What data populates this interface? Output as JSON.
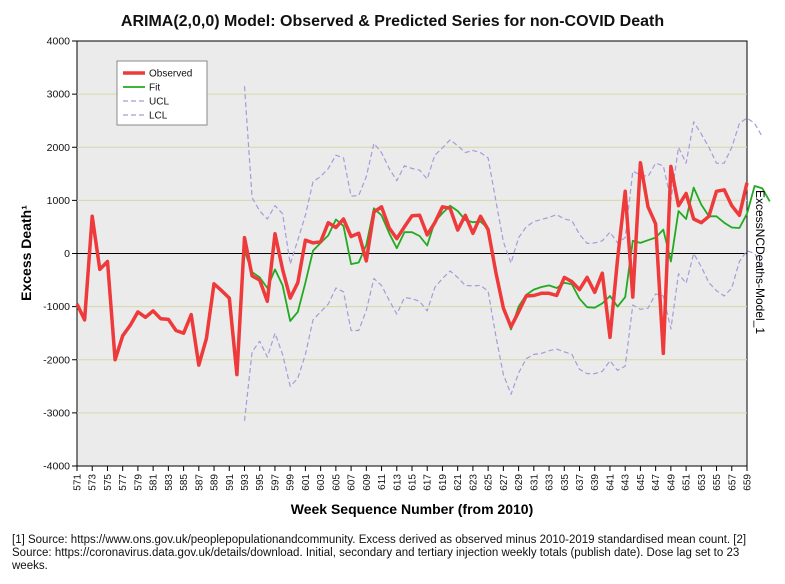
{
  "chart_data": {
    "type": "line",
    "title": "ARIMA(2,0,0) Model: Observed & Predicted Series for non-COVID Death",
    "xlabel": "Week Sequence Number (from 2010)",
    "ylabel": "Excess Death¹",
    "right_label": "ExcessNCDeaths-Model_1",
    "xlim": [
      571,
      659
    ],
    "ylim": [
      -4000,
      4000
    ],
    "y_ticks": [
      -4000,
      -3000,
      -2000,
      -1000,
      0,
      1000,
      2000,
      3000,
      4000
    ],
    "x_tick_labels": [
      "571",
      "573",
      "575",
      "577",
      "579",
      "581",
      "583",
      "585",
      "587",
      "589",
      "591",
      "593",
      "595",
      "597",
      "599",
      "601",
      "603",
      "605",
      "607",
      "609",
      "611",
      "613",
      "615",
      "617",
      "619",
      "621",
      "623",
      "625",
      "627",
      "629",
      "631",
      "633",
      "635",
      "637",
      "639",
      "641",
      "643",
      "645",
      "647",
      "649",
      "651",
      "653",
      "655",
      "657",
      "659"
    ],
    "legend_position": "top-left",
    "series": [
      {
        "name": "Observed",
        "color": "#ee3a3a",
        "style": "thick",
        "x_start": 571,
        "values": [
          -950,
          -1250,
          700,
          -300,
          -150,
          -2000,
          -1550,
          -1350,
          -1100,
          -1200,
          -1080,
          -1230,
          -1240,
          -1450,
          -1500,
          -1150,
          -2100,
          -1600,
          -570,
          -700,
          -840,
          -2280,
          300,
          -420,
          -500,
          -900,
          370,
          -300,
          -840,
          -550,
          250,
          200,
          220,
          580,
          490,
          650,
          320,
          380,
          -140,
          780,
          880,
          480,
          280,
          500,
          710,
          720,
          350,
          580,
          880,
          850,
          440,
          720,
          380,
          700,
          450,
          -350,
          -1030,
          -1380,
          -1100,
          -800,
          -790,
          -750,
          -750,
          -790,
          -450,
          -530,
          -680,
          -450,
          -730,
          -370,
          -1580,
          -100,
          1170,
          -820,
          1710,
          880,
          560,
          -1880,
          1640,
          900,
          1130,
          650,
          580,
          700,
          1170,
          1200,
          900,
          720,
          1330
        ]
      },
      {
        "name": "Fit",
        "color": "#22aa22",
        "style": "solid",
        "x_start": 593,
        "values": [
          50,
          -350,
          -450,
          -650,
          -300,
          -600,
          -1270,
          -1100,
          -550,
          50,
          200,
          340,
          640,
          520,
          -200,
          -170,
          160,
          850,
          720,
          380,
          100,
          400,
          400,
          330,
          150,
          600,
          760,
          900,
          800,
          630,
          590,
          600,
          470,
          -300,
          -1030,
          -1430,
          -1000,
          -780,
          -680,
          -630,
          -600,
          -650,
          -550,
          -580,
          -850,
          -1010,
          -1020,
          -940,
          -800,
          -1000,
          -820,
          240,
          200,
          250,
          300,
          450,
          -150,
          800,
          650,
          1240,
          920,
          700,
          700,
          580,
          490,
          480,
          750,
          1270,
          1230,
          980
        ]
      },
      {
        "name": "UCL",
        "color": "#a99ad8",
        "style": "dashed",
        "x_start": 593,
        "values": [
          3150,
          1050,
          800,
          650,
          900,
          750,
          -200,
          250,
          720,
          1350,
          1450,
          1600,
          1850,
          1800,
          1080,
          1090,
          1450,
          2070,
          1900,
          1600,
          1370,
          1650,
          1600,
          1570,
          1400,
          1850,
          1990,
          2140,
          2030,
          1900,
          1940,
          1900,
          1800,
          1000,
          220,
          -180,
          300,
          500,
          600,
          640,
          680,
          730,
          650,
          620,
          360,
          190,
          200,
          240,
          400,
          200,
          300,
          1550,
          1480,
          1450,
          1700,
          1650,
          1000,
          2000,
          1700,
          2480,
          2250,
          2000,
          1700,
          1700,
          2000,
          2450,
          2550,
          2450,
          2200
        ]
      },
      {
        "name": "LCL",
        "color": "#a99ad8",
        "style": "dashed",
        "x_start": 593,
        "values": [
          -3150,
          -1850,
          -1650,
          -1950,
          -1500,
          -1900,
          -2500,
          -2350,
          -1900,
          -1250,
          -1100,
          -950,
          -650,
          -720,
          -1450,
          -1450,
          -1070,
          -470,
          -600,
          -880,
          -1140,
          -830,
          -850,
          -900,
          -1080,
          -640,
          -470,
          -330,
          -450,
          -600,
          -610,
          -600,
          -710,
          -1550,
          -2280,
          -2650,
          -2250,
          -1980,
          -1900,
          -1880,
          -1830,
          -1800,
          -1850,
          -1900,
          -2180,
          -2260,
          -2260,
          -2220,
          -2020,
          -2200,
          -2120,
          -970,
          -1050,
          -1030,
          -760,
          -800,
          -1420,
          -380,
          -560,
          0,
          -250,
          -550,
          -700,
          -800,
          -650,
          -150,
          50,
          0,
          -250
        ]
      }
    ],
    "footnote": "[1] Source: https://www.ons.gov.uk/peoplepopulationandcommunity. Excess derived as observed minus 2010-2019 standardised mean count. [2] Source: https://coronavirus.data.gov.uk/details/download. Initial, secondary and tertiary injection weekly totals (publish date). Dose lag set to 23 weeks."
  }
}
